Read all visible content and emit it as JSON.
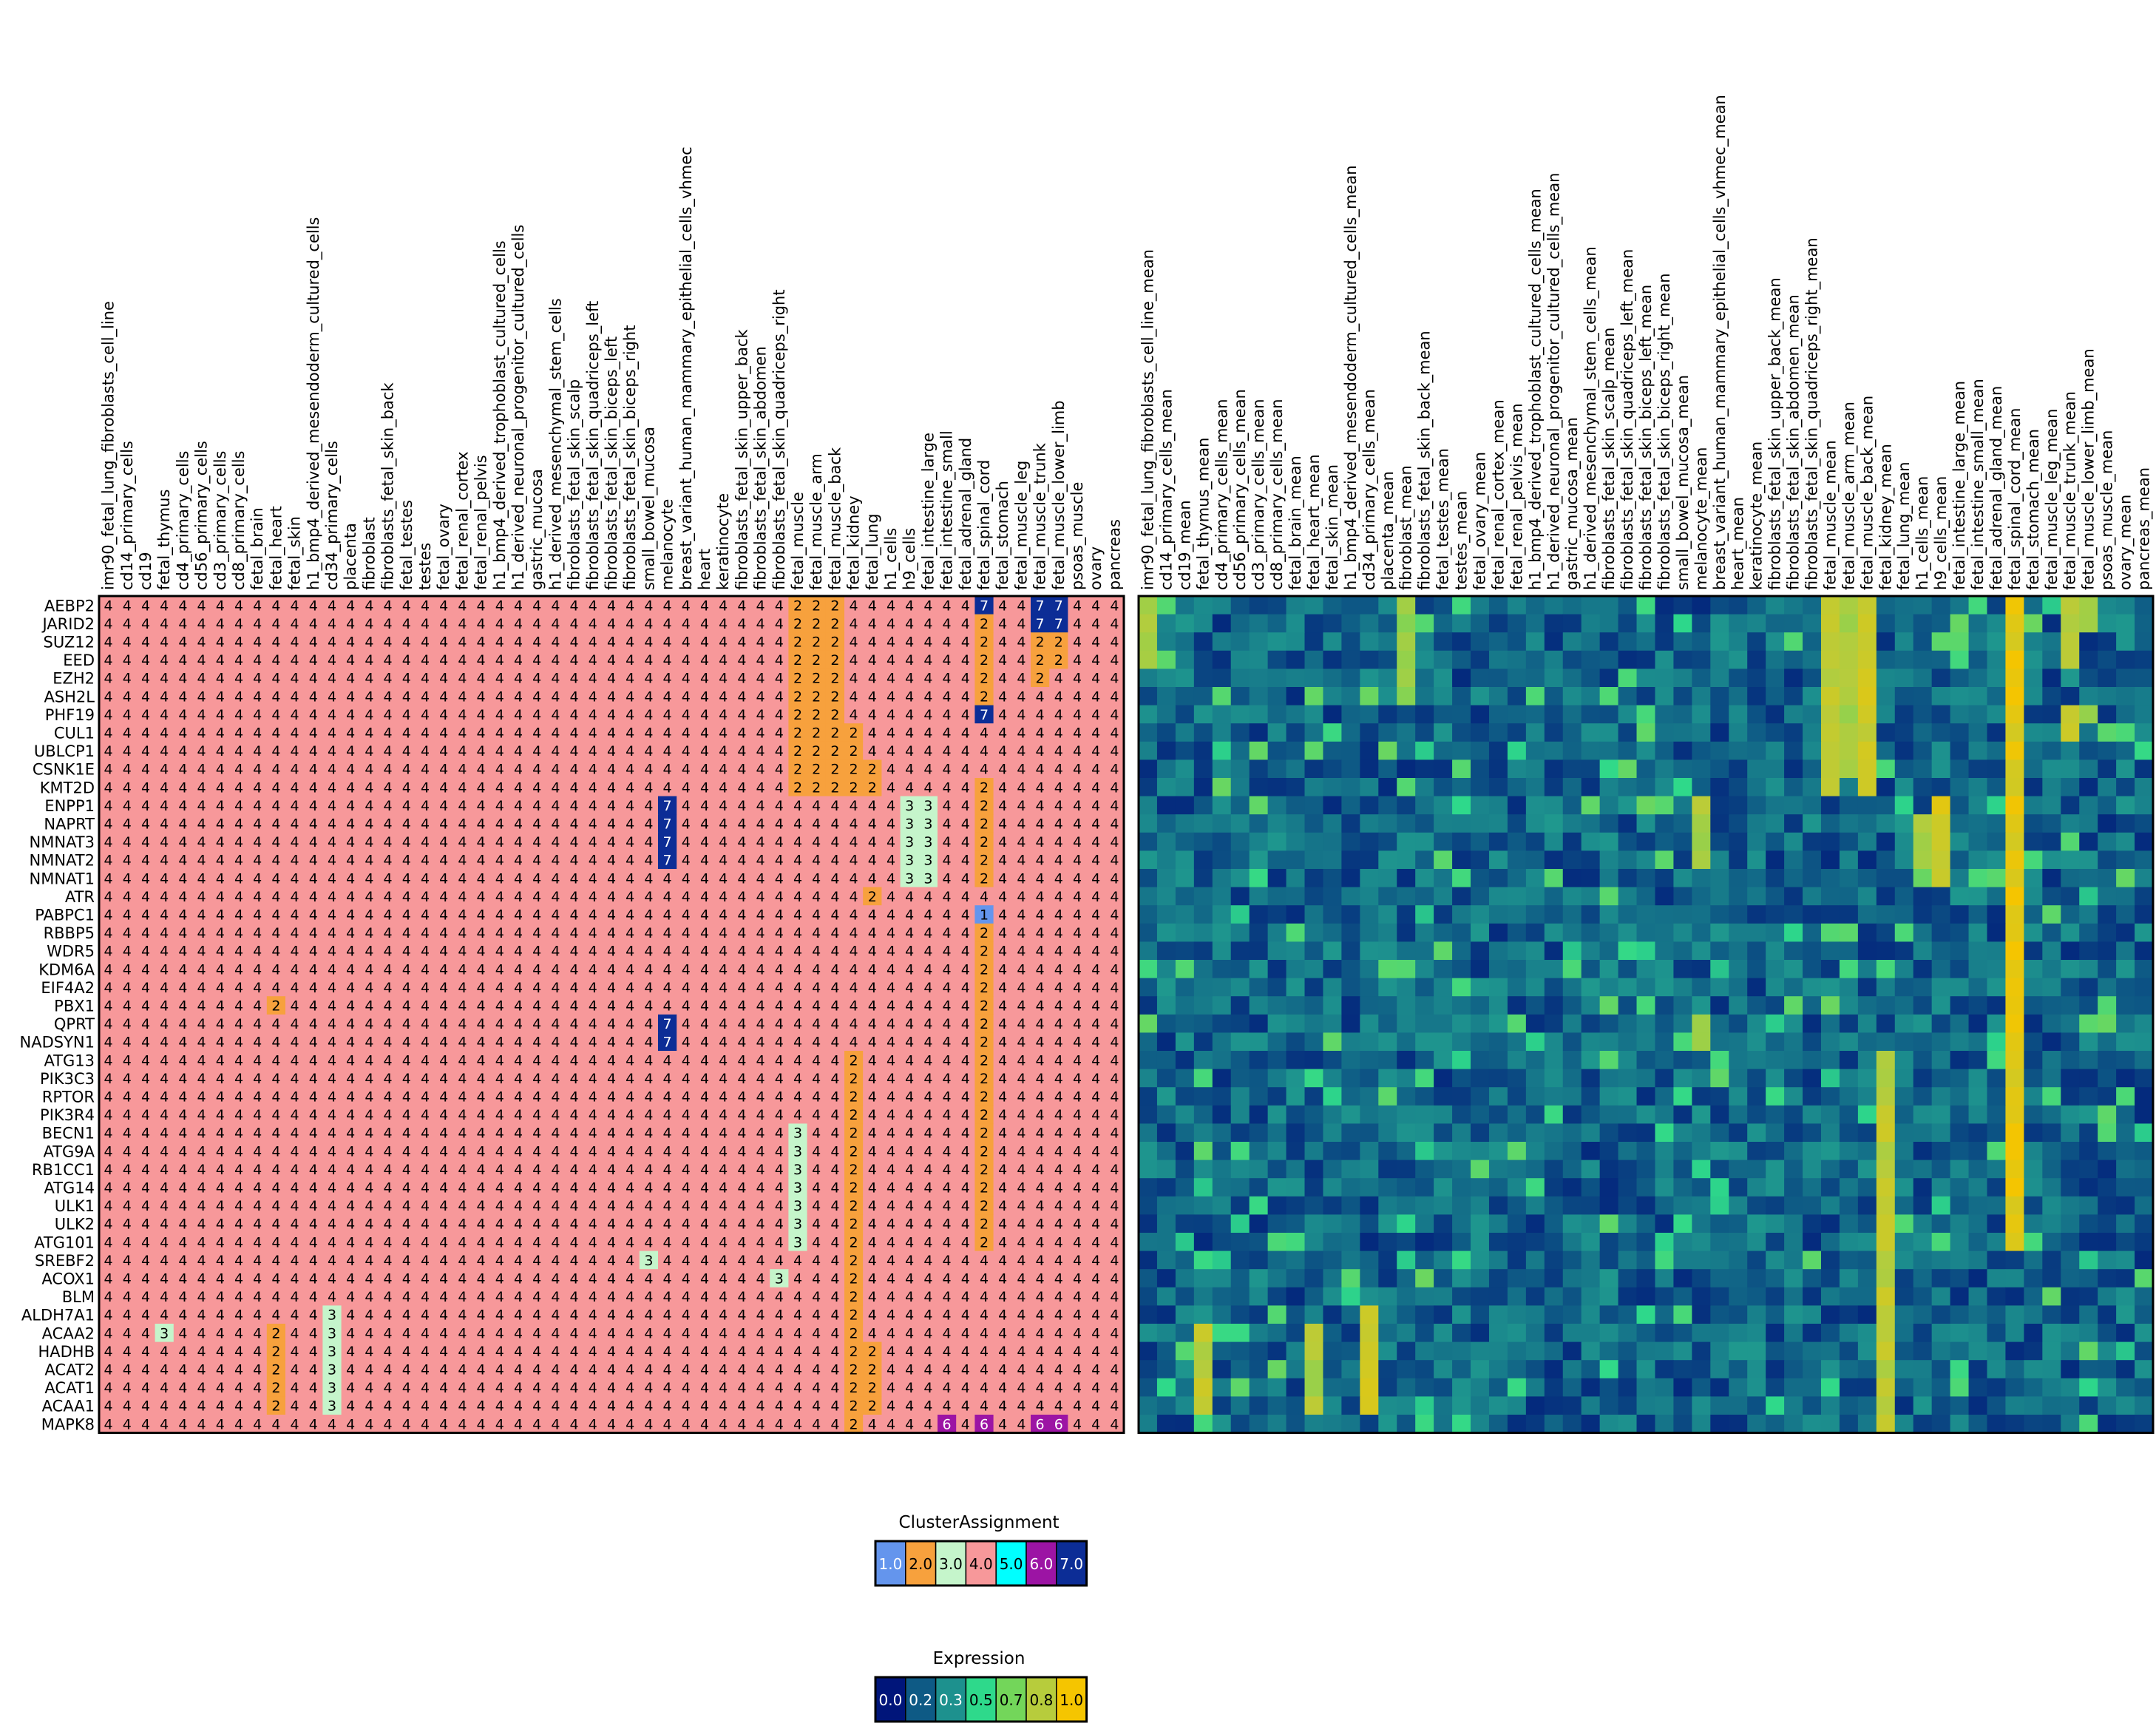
{
  "chart_data": [
    {
      "type": "heatmap",
      "name_hint": "cluster-assignment-grid",
      "legend_title": "ClusterAssignment",
      "rows": [
        "AEBP2",
        "JARID2",
        "SUZ12",
        "EED",
        "EZH2",
        "ASH2L",
        "PHF19",
        "CUL1",
        "UBLCP1",
        "CSNK1E",
        "KMT2D",
        "ENPP1",
        "NAPRT",
        "NMNAT3",
        "NMNAT2",
        "NMNAT1",
        "ATR",
        "PABPC1",
        "RBBP5",
        "WDR5",
        "KDM6A",
        "EIF4A2",
        "PBX1",
        "QPRT",
        "NADSYN1",
        "ATG13",
        "PIK3C3",
        "RPTOR",
        "PIK3R4",
        "BECN1",
        "ATG9A",
        "RB1CC1",
        "ATG14",
        "ULK1",
        "ULK2",
        "ATG101",
        "SREBF2",
        "ACOX1",
        "BLM",
        "ALDH7A1",
        "ACAA2",
        "HADHB",
        "ACAT2",
        "ACAT1",
        "ACAA1",
        "MAPK8"
      ],
      "columns": [
        "imr90_fetal_lung_fibroblasts_cell_line",
        "cd14_primary_cells",
        "cd19",
        "fetal_thymus",
        "cd4_primary_cells",
        "cd56_primary_cells",
        "cd3_primary_cells",
        "cd8_primary_cells",
        "fetal_brain",
        "fetal_heart",
        "fetal_skin",
        "h1_bmp4_derived_mesendoderm_cultured_cells",
        "cd34_primary_cells",
        "placenta",
        "fibroblast",
        "fibroblasts_fetal_skin_back",
        "fetal_testes",
        "testes",
        "fetal_ovary",
        "fetal_renal_cortex",
        "fetal_renal_pelvis",
        "h1_bmp4_derived_trophoblast_cultured_cells",
        "h1_derived_neuronal_progenitor_cultured_cells",
        "gastric_mucosa",
        "h1_derived_mesenchymal_stem_cells",
        "fibroblasts_fetal_skin_scalp",
        "fibroblasts_fetal_skin_quadriceps_left",
        "fibroblasts_fetal_skin_biceps_left",
        "fibroblasts_fetal_skin_biceps_right",
        "small_bowel_mucosa",
        "melanocyte",
        "breast_variant_human_mammary_epithelial_cells_vhmec",
        "heart",
        "keratinocyte",
        "fibroblasts_fetal_skin_upper_back",
        "fibroblasts_fetal_skin_abdomen",
        "fibroblasts_fetal_skin_quadriceps_right",
        "fetal_muscle",
        "fetal_muscle_arm",
        "fetal_muscle_back",
        "fetal_kidney",
        "fetal_lung",
        "h1_cells",
        "h9_cells",
        "fetal_intestine_large",
        "fetal_intestine_small",
        "fetal_adrenal_gland",
        "fetal_spinal_cord",
        "fetal_stomach",
        "fetal_muscle_leg",
        "fetal_muscle_trunk",
        "fetal_muscle_lower_limb",
        "psoas_muscle",
        "ovary",
        "pancreas"
      ],
      "default_value": 4,
      "overrides": [
        {
          "row": 0,
          "cols": [
            37,
            38,
            39
          ],
          "value": 2
        },
        {
          "row": 0,
          "cols": [
            47,
            50,
            51
          ],
          "value": 7
        },
        {
          "row": 1,
          "cols": [
            37,
            38,
            39,
            47
          ],
          "value": 2
        },
        {
          "row": 1,
          "cols": [
            50,
            51
          ],
          "value": 7
        },
        {
          "row": 2,
          "cols": [
            37,
            38,
            39,
            47,
            50,
            51
          ],
          "value": 2
        },
        {
          "row": 3,
          "cols": [
            37,
            38,
            39,
            47,
            50,
            51
          ],
          "value": 2
        },
        {
          "row": 4,
          "cols": [
            37,
            38,
            39,
            47,
            50
          ],
          "value": 2
        },
        {
          "row": 5,
          "cols": [
            37,
            38,
            39,
            47
          ],
          "value": 2
        },
        {
          "row": 6,
          "cols": [
            37,
            38,
            39
          ],
          "value": 2
        },
        {
          "row": 6,
          "cols": [
            47
          ],
          "value": 7
        },
        {
          "row": 7,
          "cols": [
            37,
            38,
            39,
            40
          ],
          "value": 2
        },
        {
          "row": 8,
          "cols": [
            37,
            38,
            39,
            40
          ],
          "value": 2
        },
        {
          "row": 9,
          "cols": [
            37,
            38,
            39,
            40,
            41
          ],
          "value": 2
        },
        {
          "row": 10,
          "cols": [
            37,
            38,
            39,
            40,
            41,
            47
          ],
          "value": 2
        },
        {
          "row": 11,
          "cols": [
            30
          ],
          "value": 7
        },
        {
          "row": 11,
          "cols": [
            43,
            44
          ],
          "value": 3
        },
        {
          "row": 11,
          "cols": [
            47
          ],
          "value": 2
        },
        {
          "row": 12,
          "cols": [
            30
          ],
          "value": 7
        },
        {
          "row": 12,
          "cols": [
            43,
            44
          ],
          "value": 3
        },
        {
          "row": 12,
          "cols": [
            47
          ],
          "value": 2
        },
        {
          "row": 13,
          "cols": [
            30
          ],
          "value": 7
        },
        {
          "row": 13,
          "cols": [
            43,
            44
          ],
          "value": 3
        },
        {
          "row": 13,
          "cols": [
            47
          ],
          "value": 2
        },
        {
          "row": 14,
          "cols": [
            30
          ],
          "value": 7
        },
        {
          "row": 14,
          "cols": [
            43,
            44
          ],
          "value": 3
        },
        {
          "row": 14,
          "cols": [
            47
          ],
          "value": 2
        },
        {
          "row": 15,
          "cols": [
            43,
            44
          ],
          "value": 3
        },
        {
          "row": 15,
          "cols": [
            47
          ],
          "value": 2
        },
        {
          "row": 16,
          "cols": [
            41
          ],
          "value": 2
        },
        {
          "row": 17,
          "cols": [
            47
          ],
          "value": 1
        },
        {
          "row": 18,
          "cols": [
            47
          ],
          "value": 2
        },
        {
          "row": 19,
          "cols": [
            47
          ],
          "value": 2
        },
        {
          "row": 20,
          "cols": [
            47
          ],
          "value": 2
        },
        {
          "row": 21,
          "cols": [
            47
          ],
          "value": 2
        },
        {
          "row": 22,
          "cols": [
            9,
            47
          ],
          "value": 2
        },
        {
          "row": 23,
          "cols": [
            30
          ],
          "value": 7
        },
        {
          "row": 23,
          "cols": [
            47
          ],
          "value": 2
        },
        {
          "row": 24,
          "cols": [
            30
          ],
          "value": 7
        },
        {
          "row": 24,
          "cols": [
            47
          ],
          "value": 2
        },
        {
          "row": 25,
          "cols": [
            40,
            47
          ],
          "value": 2
        },
        {
          "row": 26,
          "cols": [
            40,
            47
          ],
          "value": 2
        },
        {
          "row": 27,
          "cols": [
            40,
            47
          ],
          "value": 2
        },
        {
          "row": 28,
          "cols": [
            40,
            47
          ],
          "value": 2
        },
        {
          "row": 29,
          "cols": [
            37
          ],
          "value": 3
        },
        {
          "row": 29,
          "cols": [
            40,
            47
          ],
          "value": 2
        },
        {
          "row": 30,
          "cols": [
            37
          ],
          "value": 3
        },
        {
          "row": 30,
          "cols": [
            40,
            47
          ],
          "value": 2
        },
        {
          "row": 31,
          "cols": [
            37
          ],
          "value": 3
        },
        {
          "row": 31,
          "cols": [
            40,
            47
          ],
          "value": 2
        },
        {
          "row": 32,
          "cols": [
            37
          ],
          "value": 3
        },
        {
          "row": 32,
          "cols": [
            40,
            47
          ],
          "value": 2
        },
        {
          "row": 33,
          "cols": [
            37
          ],
          "value": 3
        },
        {
          "row": 33,
          "cols": [
            40,
            47
          ],
          "value": 2
        },
        {
          "row": 34,
          "cols": [
            37
          ],
          "value": 3
        },
        {
          "row": 34,
          "cols": [
            40,
            47
          ],
          "value": 2
        },
        {
          "row": 35,
          "cols": [
            37
          ],
          "value": 3
        },
        {
          "row": 35,
          "cols": [
            40,
            47
          ],
          "value": 2
        },
        {
          "row": 36,
          "cols": [
            29
          ],
          "value": 3
        },
        {
          "row": 36,
          "cols": [
            40
          ],
          "value": 2
        },
        {
          "row": 37,
          "cols": [
            36
          ],
          "value": 3
        },
        {
          "row": 37,
          "cols": [
            40
          ],
          "value": 2
        },
        {
          "row": 38,
          "cols": [
            40
          ],
          "value": 2
        },
        {
          "row": 39,
          "cols": [
            12
          ],
          "value": 3
        },
        {
          "row": 39,
          "cols": [
            40
          ],
          "value": 2
        },
        {
          "row": 40,
          "cols": [
            3,
            12
          ],
          "value": 3
        },
        {
          "row": 40,
          "cols": [
            9,
            40
          ],
          "value": 2
        },
        {
          "row": 41,
          "cols": [
            12
          ],
          "value": 3
        },
        {
          "row": 41,
          "cols": [
            9,
            40,
            41
          ],
          "value": 2
        },
        {
          "row": 42,
          "cols": [
            12
          ],
          "value": 3
        },
        {
          "row": 42,
          "cols": [
            9,
            40,
            41
          ],
          "value": 2
        },
        {
          "row": 43,
          "cols": [
            12
          ],
          "value": 3
        },
        {
          "row": 43,
          "cols": [
            9,
            40,
            41
          ],
          "value": 2
        },
        {
          "row": 44,
          "cols": [
            12
          ],
          "value": 3
        },
        {
          "row": 44,
          "cols": [
            9,
            40,
            41
          ],
          "value": 2
        },
        {
          "row": 45,
          "cols": [
            40
          ],
          "value": 2
        },
        {
          "row": 45,
          "cols": [
            45,
            47,
            50,
            51
          ],
          "value": 6
        }
      ],
      "colors": {
        "1": "#6495ed",
        "2": "#f7a13d",
        "3": "#c5f5cb",
        "4": "#f7989a",
        "5": "#00ffff",
        "6": "#9c14a4",
        "7": "#0c2d96"
      }
    },
    {
      "type": "heatmap",
      "name_hint": "expression-grid",
      "legend_title": "Expression",
      "rows_same_as": 0,
      "columns": [
        "imr90_fetal_lung_fibroblasts_cell_line_mean",
        "cd14_primary_cells_mean",
        "cd19_mean",
        "fetal_thymus_mean",
        "cd4_primary_cells_mean",
        "cd56_primary_cells_mean",
        "cd3_primary_cells_mean",
        "cd8_primary_cells_mean",
        "fetal_brain_mean",
        "fetal_heart_mean",
        "fetal_skin_mean",
        "h1_bmp4_derived_mesendoderm_cultured_cells_mean",
        "cd34_primary_cells_mean",
        "placenta_mean",
        "fibroblast_mean",
        "fibroblasts_fetal_skin_back_mean",
        "fetal_testes_mean",
        "testes_mean",
        "fetal_ovary_mean",
        "fetal_renal_cortex_mean",
        "fetal_renal_pelvis_mean",
        "h1_bmp4_derived_trophoblast_cultured_cells_mean",
        "h1_derived_neuronal_progenitor_cultured_cells_mean",
        "gastric_mucosa_mean",
        "h1_derived_mesenchymal_stem_cells_mean",
        "fibroblasts_fetal_skin_scalp_mean",
        "fibroblasts_fetal_skin_quadriceps_left_mean",
        "fibroblasts_fetal_skin_biceps_left_mean",
        "fibroblasts_fetal_skin_biceps_right_mean",
        "small_bowel_mucosa_mean",
        "melanocyte_mean",
        "breast_variant_human_mammary_epithelial_cells_vhmec_mean",
        "heart_mean",
        "keratinocyte_mean",
        "fibroblasts_fetal_skin_upper_back_mean",
        "fibroblasts_fetal_skin_abdomen_mean",
        "fibroblasts_fetal_skin_quadriceps_right_mean",
        "fetal_muscle_mean",
        "fetal_muscle_arm_mean",
        "fetal_muscle_back_mean",
        "fetal_kidney_mean",
        "fetal_lung_mean",
        "h1_cells_mean",
        "h9_cells_mean",
        "fetal_intestine_large_mean",
        "fetal_intestine_small_mean",
        "fetal_adrenal_gland_mean",
        "fetal_spinal_cord_mean",
        "fetal_stomach_mean",
        "fetal_muscle_leg_mean",
        "fetal_muscle_trunk_mean",
        "fetal_muscle_lower_limb_mean",
        "psoas_muscle_mean",
        "ovary_mean",
        "pancreas_mean"
      ],
      "value_range": [
        0,
        1
      ],
      "colorscale": [
        "#00157a",
        "#0e5a85",
        "#1d918e",
        "#2ed98b",
        "#73d65a",
        "#b7cc3c",
        "#f5c500"
      ],
      "note_values": "approximate per-cell expression read from the color map",
      "hot_columns": {
        "37": {
          "rows": [
            0,
            1,
            2,
            3,
            4,
            5,
            6,
            7,
            8,
            9,
            10
          ],
          "value": 0.8
        },
        "38": {
          "rows": [
            0,
            1,
            2,
            3,
            4,
            5,
            6,
            7,
            8,
            9
          ],
          "value": 0.75
        },
        "39": {
          "rows": [
            0,
            1,
            2,
            3,
            4,
            5,
            6,
            7,
            8,
            9,
            10
          ],
          "value": 0.85
        },
        "47": {
          "rows": [
            0,
            1,
            2,
            3,
            4,
            5,
            6,
            7,
            8,
            9,
            10,
            11,
            12,
            13,
            14,
            15,
            16,
            17,
            18,
            19,
            20,
            21,
            22,
            23,
            24,
            25,
            26,
            27,
            28,
            29,
            30,
            31,
            32,
            33,
            34,
            35
          ],
          "value": 0.9
        },
        "40": {
          "rows": [
            25,
            26,
            27,
            28,
            29,
            30,
            31,
            32,
            33,
            34,
            35,
            36,
            37,
            38,
            39,
            40,
            41,
            42,
            43,
            44,
            45
          ],
          "value": 0.8
        },
        "43": {
          "rows": [
            11,
            12,
            13,
            14,
            15
          ],
          "value": 0.85
        },
        "42": {
          "rows": [
            12,
            13,
            14
          ],
          "value": 0.75
        },
        "50": {
          "rows": [
            0,
            1,
            2,
            3,
            6,
            7
          ],
          "value": 0.8
        },
        "51": {
          "rows": [
            0,
            1,
            6
          ],
          "value": 0.75
        },
        "12": {
          "rows": [
            39,
            40,
            41,
            42,
            43,
            44
          ],
          "value": 0.85
        },
        "3": {
          "rows": [
            40,
            41,
            42,
            43,
            44
          ],
          "value": 0.8
        },
        "9": {
          "rows": [
            40,
            41,
            42,
            43,
            44
          ],
          "value": 0.75
        },
        "30": {
          "rows": [
            11,
            12,
            13,
            14,
            23,
            24
          ],
          "value": 0.75
        },
        "0": {
          "rows": [
            0,
            1,
            2,
            3
          ],
          "value": 0.75
        },
        "14": {
          "rows": [
            0,
            1,
            2,
            3,
            4,
            5
          ],
          "value": 0.7
        }
      }
    }
  ],
  "legends": {
    "cluster": {
      "title": "ClusterAssignment",
      "labels": [
        "1.0",
        "2.0",
        "3.0",
        "4.0",
        "5.0",
        "6.0",
        "7.0"
      ],
      "colors": [
        "#6495ed",
        "#f7a13d",
        "#c5f5cb",
        "#f7989a",
        "#00ffff",
        "#9c14a4",
        "#0c2d96"
      ]
    },
    "expression": {
      "title": "Expression",
      "labels": [
        "0.0",
        "0.2",
        "0.3",
        "0.5",
        "0.7",
        "0.8",
        "1.0"
      ],
      "colors": [
        "#00157a",
        "#0e5a85",
        "#1d918e",
        "#2ed98b",
        "#73d65a",
        "#b7cc3c",
        "#f5c500"
      ]
    }
  }
}
